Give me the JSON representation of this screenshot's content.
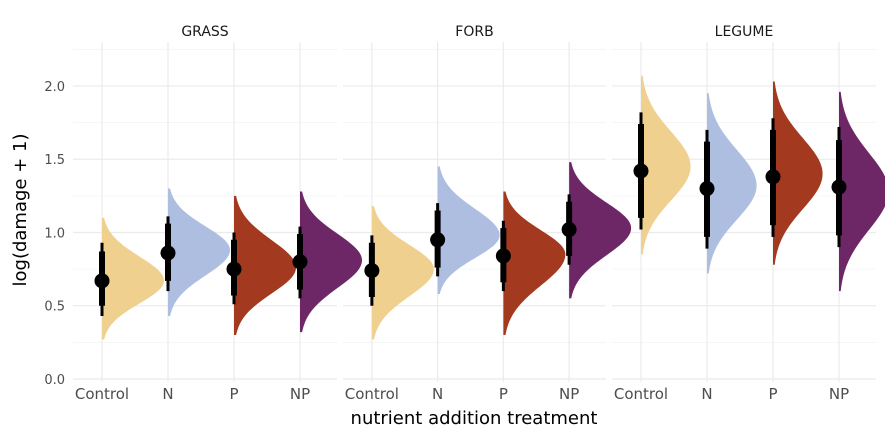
{
  "chart_data": {
    "type": "halfeye",
    "xlabel": "nutrient addition treatment",
    "ylabel": "log(damage + 1)",
    "ylim": [
      0,
      2.3
    ],
    "yticks": [
      "0.0",
      "0.5",
      "1.0",
      "1.5",
      "2.0"
    ],
    "categories": [
      "Control",
      "N",
      "P",
      "NP"
    ],
    "grid": true,
    "colors": {
      "Control": "#f0d08e",
      "N": "#aebee0",
      "P": "#a33a1f",
      "NP": "#6e2766"
    },
    "panels": [
      {
        "name": "GRASS",
        "points": [
          {
            "treatment": "Control",
            "median": 0.67,
            "interval_66": [
              0.5,
              0.87
            ],
            "interval_95": [
              0.43,
              0.93
            ],
            "dist_min": 0.27,
            "dist_max": 1.1,
            "mode": 0.67,
            "scale": 1.0
          },
          {
            "treatment": "N",
            "median": 0.86,
            "interval_66": [
              0.67,
              1.06
            ],
            "interval_95": [
              0.6,
              1.11
            ],
            "dist_min": 0.43,
            "dist_max": 1.3,
            "mode": 0.88,
            "scale": 1.0
          },
          {
            "treatment": "P",
            "median": 0.75,
            "interval_66": [
              0.57,
              0.95
            ],
            "interval_95": [
              0.51,
              1.0
            ],
            "dist_min": 0.3,
            "dist_max": 1.25,
            "mode": 0.76,
            "scale": 1.0
          },
          {
            "treatment": "NP",
            "median": 0.8,
            "interval_66": [
              0.61,
              0.99
            ],
            "interval_95": [
              0.55,
              1.04
            ],
            "dist_min": 0.32,
            "dist_max": 1.28,
            "mode": 0.81,
            "scale": 1.0
          }
        ]
      },
      {
        "name": "FORB",
        "points": [
          {
            "treatment": "Control",
            "median": 0.74,
            "interval_66": [
              0.56,
              0.93
            ],
            "interval_95": [
              0.5,
              0.98
            ],
            "dist_min": 0.27,
            "dist_max": 1.18,
            "mode": 0.75,
            "scale": 1.0
          },
          {
            "treatment": "N",
            "median": 0.95,
            "interval_66": [
              0.76,
              1.15
            ],
            "interval_95": [
              0.7,
              1.2
            ],
            "dist_min": 0.58,
            "dist_max": 1.45,
            "mode": 0.98,
            "scale": 1.0
          },
          {
            "treatment": "P",
            "median": 0.84,
            "interval_66": [
              0.66,
              1.03
            ],
            "interval_95": [
              0.6,
              1.08
            ],
            "dist_min": 0.3,
            "dist_max": 1.28,
            "mode": 0.85,
            "scale": 1.0
          },
          {
            "treatment": "NP",
            "median": 1.02,
            "interval_66": [
              0.84,
              1.21
            ],
            "interval_95": [
              0.78,
              1.26
            ],
            "dist_min": 0.55,
            "dist_max": 1.48,
            "mode": 1.03,
            "scale": 1.0
          }
        ]
      },
      {
        "name": "LEGUME",
        "points": [
          {
            "treatment": "Control",
            "median": 1.42,
            "interval_66": [
              1.1,
              1.74
            ],
            "interval_95": [
              1.02,
              1.82
            ],
            "dist_min": 0.85,
            "dist_max": 2.07,
            "mode": 1.45,
            "scale": 0.8
          },
          {
            "treatment": "N",
            "median": 1.3,
            "interval_66": [
              0.97,
              1.62
            ],
            "interval_95": [
              0.89,
              1.7
            ],
            "dist_min": 0.72,
            "dist_max": 1.95,
            "mode": 1.32,
            "scale": 0.8
          },
          {
            "treatment": "P",
            "median": 1.38,
            "interval_66": [
              1.05,
              1.7
            ],
            "interval_95": [
              0.97,
              1.78
            ],
            "dist_min": 0.78,
            "dist_max": 2.03,
            "mode": 1.4,
            "scale": 0.8
          },
          {
            "treatment": "NP",
            "median": 1.31,
            "interval_66": [
              0.98,
              1.63
            ],
            "interval_95": [
              0.9,
              1.72
            ],
            "dist_min": 0.6,
            "dist_max": 1.96,
            "mode": 1.28,
            "scale": 0.8
          }
        ]
      }
    ]
  }
}
